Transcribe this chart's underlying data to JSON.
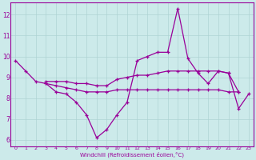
{
  "x": [
    0,
    1,
    2,
    3,
    4,
    5,
    6,
    7,
    8,
    9,
    10,
    11,
    12,
    13,
    14,
    15,
    16,
    17,
    18,
    19,
    20,
    21,
    22,
    23
  ],
  "line1": [
    9.8,
    9.3,
    8.8,
    8.7,
    8.3,
    8.2,
    7.8,
    7.2,
    6.1,
    6.5,
    7.2,
    7.8,
    9.8,
    10.0,
    10.2,
    10.2,
    12.3,
    9.9,
    9.2,
    8.7,
    9.3,
    9.2,
    7.5,
    8.2
  ],
  "line2_x": [
    3,
    4,
    5,
    6,
    7,
    8,
    9,
    10,
    11,
    12,
    13,
    14,
    15,
    16,
    17,
    18,
    19,
    20,
    21,
    22
  ],
  "line2_y": [
    8.8,
    8.8,
    8.8,
    8.7,
    8.7,
    8.6,
    8.6,
    8.9,
    9.0,
    9.1,
    9.1,
    9.2,
    9.3,
    9.3,
    9.3,
    9.3,
    9.3,
    9.3,
    9.2,
    8.3
  ],
  "line3_x": [
    3,
    4,
    5,
    6,
    7,
    8,
    9,
    10,
    11,
    12,
    13,
    14,
    15,
    16,
    17,
    18,
    19,
    20,
    21,
    22
  ],
  "line3_y": [
    8.7,
    8.6,
    8.5,
    8.4,
    8.3,
    8.3,
    8.3,
    8.4,
    8.4,
    8.4,
    8.4,
    8.4,
    8.4,
    8.4,
    8.4,
    8.4,
    8.4,
    8.4,
    8.3,
    8.3
  ],
  "ylim_bottom": 5.7,
  "ylim_top": 12.6,
  "yticks": [
    6,
    7,
    8,
    9,
    10,
    11,
    12
  ],
  "xlim_left": -0.5,
  "xlim_right": 23.5,
  "line_color": "#990099",
  "bg_color": "#cceaea",
  "grid_color": "#aed4d4",
  "xlabel": "Windchill (Refroidissement éolien,°C)"
}
